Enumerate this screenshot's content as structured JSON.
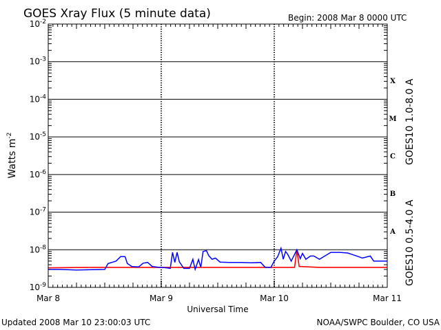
{
  "header": {
    "title": "GOES Xray Flux (5 minute data)",
    "begin": "Begin:  2008 Mar 8 0000 UTC"
  },
  "footer": {
    "updated": "Updated 2008 Mar 10 23:00:03 UTC",
    "source": "NOAA/SWPC Boulder, CO USA"
  },
  "chart_data": {
    "type": "line",
    "xlabel": "Universal Time",
    "ylabel": "Watts m",
    "ylabel_sup": "-2",
    "yscale": "log",
    "ylim": [
      1e-09,
      0.01
    ],
    "xlim_days": [
      0,
      3
    ],
    "x_tick_labels": [
      "Mar 8",
      "Mar 9",
      "Mar 10",
      "Mar 11"
    ],
    "y_ticks": [
      {
        "base": "10",
        "exp": "-9"
      },
      {
        "base": "10",
        "exp": "-8"
      },
      {
        "base": "10",
        "exp": "-7"
      },
      {
        "base": "10",
        "exp": "-6"
      },
      {
        "base": "10",
        "exp": "-5"
      },
      {
        "base": "10",
        "exp": "-4"
      },
      {
        "base": "10",
        "exp": "-3"
      },
      {
        "base": "10",
        "exp": "-2"
      }
    ],
    "flare_classes": [
      "A",
      "B",
      "C",
      "M",
      "X"
    ],
    "series": [
      {
        "name": "GOES10 1.0-8.0 A",
        "color": "#ff0000",
        "points": [
          [
            0.0,
            3.3e-09
          ],
          [
            0.4,
            3.4e-09
          ],
          [
            0.9,
            3.4e-09
          ],
          [
            1.2,
            3.4e-09
          ],
          [
            1.6,
            3.4e-09
          ],
          [
            2.0,
            3.4e-09
          ],
          [
            2.18,
            3.4e-09
          ],
          [
            2.2,
            1e-08
          ],
          [
            2.22,
            3.6e-09
          ],
          [
            2.4,
            3.4e-09
          ],
          [
            3.0,
            3.4e-09
          ]
        ]
      },
      {
        "name": "GOES10 0.5-4.0 A",
        "color": "#0000ff",
        "points": [
          [
            0.0,
            3e-09
          ],
          [
            0.1,
            3e-09
          ],
          [
            0.25,
            2.9e-09
          ],
          [
            0.5,
            3e-09
          ],
          [
            0.53,
            4.3e-09
          ],
          [
            0.6,
            5e-09
          ],
          [
            0.64,
            6.6e-09
          ],
          [
            0.68,
            6.6e-09
          ],
          [
            0.7,
            4.3e-09
          ],
          [
            0.74,
            3.6e-09
          ],
          [
            0.8,
            3.5e-09
          ],
          [
            0.84,
            4.4e-09
          ],
          [
            0.88,
            4.6e-09
          ],
          [
            0.92,
            3.6e-09
          ],
          [
            0.98,
            3.4e-09
          ],
          [
            1.0,
            3.4e-09
          ],
          [
            1.05,
            3.3e-09
          ],
          [
            1.08,
            3.2e-09
          ],
          [
            1.1,
            8.5e-09
          ],
          [
            1.12,
            4.6e-09
          ],
          [
            1.14,
            8.5e-09
          ],
          [
            1.16,
            4.8e-09
          ],
          [
            1.2,
            3.2e-09
          ],
          [
            1.25,
            3.2e-09
          ],
          [
            1.28,
            5.6e-09
          ],
          [
            1.3,
            3e-09
          ],
          [
            1.33,
            5.5e-09
          ],
          [
            1.35,
            3.4e-09
          ],
          [
            1.37,
            9e-09
          ],
          [
            1.4,
            9.5e-09
          ],
          [
            1.42,
            7e-09
          ],
          [
            1.45,
            5.6e-09
          ],
          [
            1.48,
            6e-09
          ],
          [
            1.52,
            4.7e-09
          ],
          [
            1.6,
            4.6e-09
          ],
          [
            1.7,
            4.6e-09
          ],
          [
            1.8,
            4.5e-09
          ],
          [
            1.88,
            4.6e-09
          ],
          [
            1.92,
            3.4e-09
          ],
          [
            1.97,
            3.4e-09
          ],
          [
            2.0,
            5e-09
          ],
          [
            2.03,
            6.5e-09
          ],
          [
            2.06,
            1.1e-08
          ],
          [
            2.08,
            5.6e-09
          ],
          [
            2.1,
            9e-09
          ],
          [
            2.12,
            7.5e-09
          ],
          [
            2.15,
            5e-09
          ],
          [
            2.2,
            1e-08
          ],
          [
            2.23,
            5.8e-09
          ],
          [
            2.25,
            8e-09
          ],
          [
            2.28,
            5.6e-09
          ],
          [
            2.32,
            6.8e-09
          ],
          [
            2.35,
            6.8e-09
          ],
          [
            2.4,
            5.6e-09
          ],
          [
            2.5,
            8.5e-09
          ],
          [
            2.58,
            8.5e-09
          ],
          [
            2.65,
            8.2e-09
          ],
          [
            2.72,
            7e-09
          ],
          [
            2.78,
            6e-09
          ],
          [
            2.85,
            6.8e-09
          ],
          [
            2.88,
            5e-09
          ],
          [
            3.0,
            5e-09
          ]
        ]
      }
    ]
  }
}
